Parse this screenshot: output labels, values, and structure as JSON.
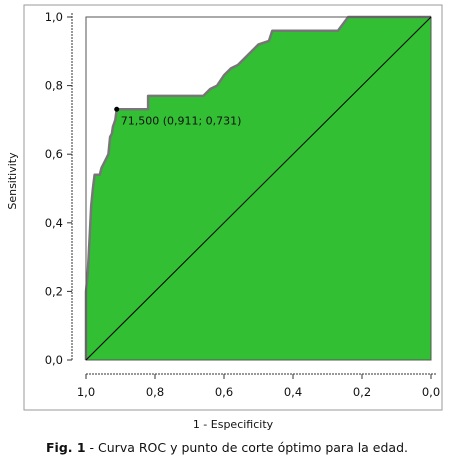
{
  "chart_data": {
    "type": "area",
    "xlabel": "1 - Especificity",
    "ylabel": "Sensitivity",
    "x_reversed": true,
    "xlim": [
      1.0,
      0.0
    ],
    "ylim": [
      0.0,
      1.0
    ],
    "x_ticks": [
      "1,0",
      "0,8",
      "0,6",
      "0,4",
      "0,2",
      "0,0"
    ],
    "y_ticks": [
      "0,0",
      "0,2",
      "0,4",
      "0,6",
      "0,8",
      "1,0"
    ],
    "grid": false,
    "series": [
      {
        "points": [
          [
            1.0,
            0.0
          ],
          [
            1.0,
            0.2
          ],
          [
            0.995,
            0.25
          ],
          [
            0.99,
            0.35
          ],
          [
            0.985,
            0.45
          ],
          [
            0.98,
            0.5
          ],
          [
            0.975,
            0.54
          ],
          [
            0.96,
            0.54
          ],
          [
            0.955,
            0.56
          ],
          [
            0.945,
            0.58
          ],
          [
            0.935,
            0.6
          ],
          [
            0.93,
            0.65
          ],
          [
            0.925,
            0.66
          ],
          [
            0.922,
            0.68
          ],
          [
            0.915,
            0.7
          ],
          [
            0.911,
            0.731
          ],
          [
            0.82,
            0.731
          ],
          [
            0.82,
            0.77
          ],
          [
            0.66,
            0.77
          ],
          [
            0.64,
            0.79
          ],
          [
            0.62,
            0.8
          ],
          [
            0.6,
            0.83
          ],
          [
            0.58,
            0.85
          ],
          [
            0.56,
            0.86
          ],
          [
            0.5,
            0.92
          ],
          [
            0.47,
            0.93
          ],
          [
            0.46,
            0.96
          ],
          [
            0.27,
            0.96
          ],
          [
            0.24,
            1.0
          ],
          [
            0.0,
            1.0
          ]
        ]
      }
    ],
    "fill_color": "#33bf33",
    "curve_color": "#777777",
    "diagonal": true,
    "annotation": {
      "x": 0.911,
      "y": 0.731,
      "text": "71,500 (0,911; 0,731)"
    }
  },
  "caption": {
    "prefix": "Fig. 1",
    "text": " - Curva ROC y punto de corte óptimo para la edad."
  }
}
